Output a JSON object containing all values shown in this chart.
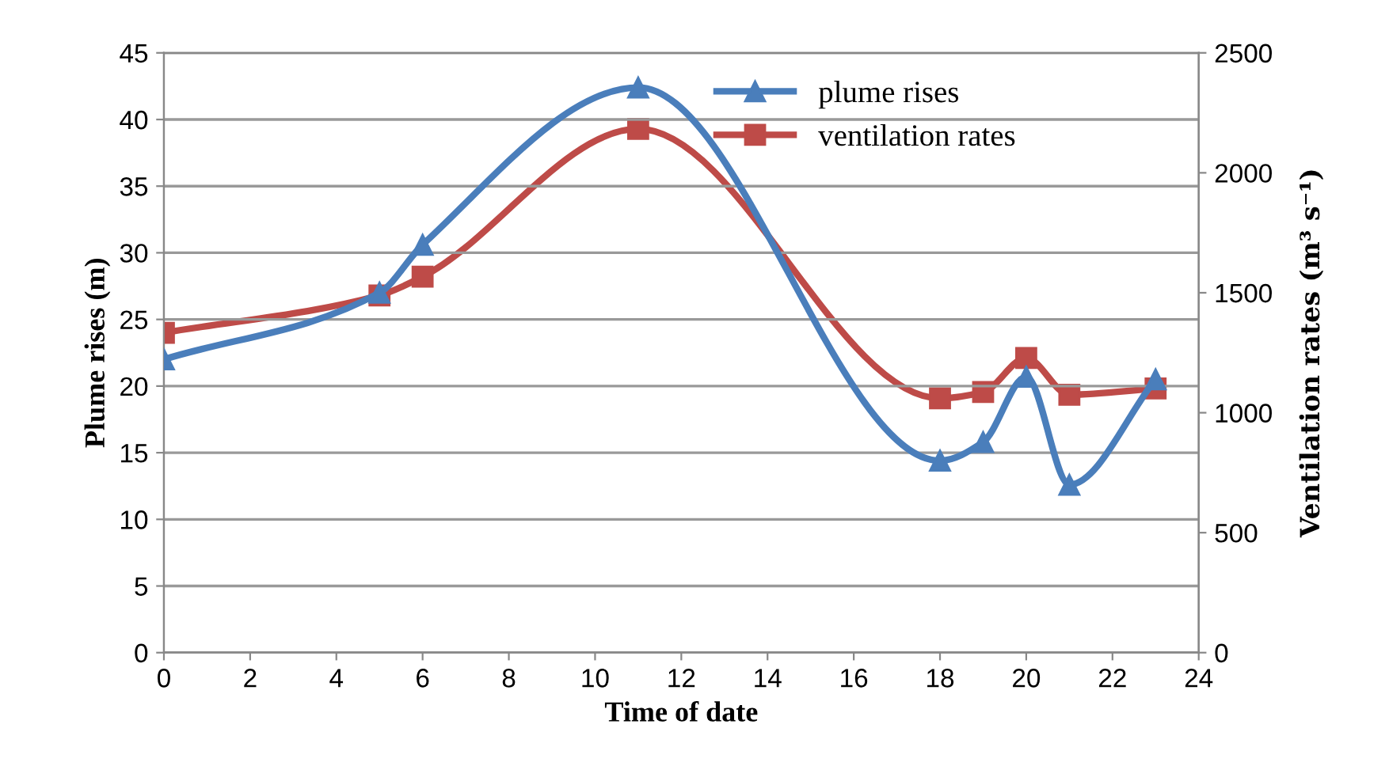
{
  "chart_data": {
    "type": "line",
    "xlabel": "Time of date",
    "ylabel": "Plume rises (m)",
    "y2label": "Ventilation rates (m³ s⁻¹)",
    "series": [
      {
        "name": "plume rises",
        "color": "#4a7ebb",
        "marker": "triangle",
        "x": [
          0,
          5,
          6,
          11,
          18,
          19,
          20,
          21,
          23
        ],
        "values": [
          22,
          27,
          30.6,
          42.4,
          14.4,
          15.8,
          20.7,
          12.6,
          20.5
        ]
      },
      {
        "name": "ventilation rates",
        "color": "#be4b48",
        "marker": "square",
        "axis": "y2",
        "x": [
          0,
          5,
          6,
          11,
          18,
          19,
          20,
          21,
          23
        ],
        "values": [
          1333,
          1489,
          1567,
          2183,
          1060,
          1086,
          1228,
          1075,
          1101
        ]
      }
    ],
    "xlim": [
      0,
      24
    ],
    "xticks": [
      0,
      2,
      4,
      6,
      8,
      10,
      12,
      14,
      16,
      18,
      20,
      22,
      24
    ],
    "ylim": [
      0,
      45
    ],
    "yticks": [
      0,
      5,
      10,
      15,
      20,
      25,
      30,
      35,
      40,
      45
    ],
    "y2lim": [
      0,
      2500
    ],
    "y2ticks": [
      0,
      500,
      1000,
      1500,
      2000,
      2500
    ],
    "grid": "y",
    "legend": "top right",
    "line_style": "solid"
  }
}
